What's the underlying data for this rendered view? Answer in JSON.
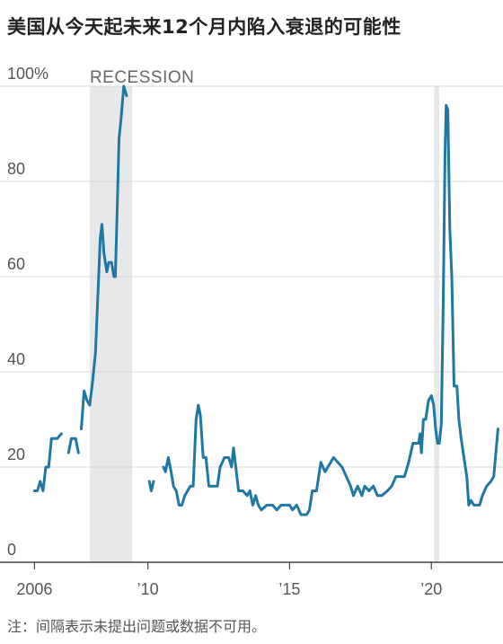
{
  "header": {
    "title": "美国从今天起未来12个月内陷入衰退的可能性"
  },
  "footer": {
    "note": "注：间隔表示未提出问题或数据不可用。"
  },
  "colors": {
    "line": "#1f77a4",
    "recession": "#e6e8ea",
    "grid": "#d9d9d9",
    "axis": "#444444"
  },
  "chart_data": {
    "type": "line",
    "title": "美国从今天起未来12个月内陷入衰退的可能性",
    "xlabel": "",
    "ylabel": "",
    "xlim": [
      2005.1,
      2022.4
    ],
    "ylim": [
      0,
      100
    ],
    "x_ticks": [
      {
        "value": 2006,
        "label": "2006"
      },
      {
        "value": 2010,
        "label": "’10"
      },
      {
        "value": 2015,
        "label": "’15"
      },
      {
        "value": 2020,
        "label": "’20"
      }
    ],
    "y_ticks": [
      {
        "value": 0,
        "label": "0"
      },
      {
        "value": 20,
        "label": "20"
      },
      {
        "value": 40,
        "label": "40"
      },
      {
        "value": 60,
        "label": "60"
      },
      {
        "value": 80,
        "label": "80"
      },
      {
        "value": 100,
        "label": "100%"
      }
    ],
    "grid": true,
    "recessions": [
      {
        "start": 2007.95,
        "end": 2009.45,
        "label": "RECESSION"
      },
      {
        "start": 2020.1,
        "end": 2020.28,
        "label": ""
      }
    ],
    "series": [
      {
        "name": "",
        "segments": [
          [
            [
              2006.0,
              15
            ],
            [
              2006.1,
              15
            ],
            [
              2006.2,
              17
            ],
            [
              2006.3,
              15
            ],
            [
              2006.4,
              20
            ],
            [
              2006.5,
              20
            ],
            [
              2006.6,
              26
            ],
            [
              2006.7,
              26
            ],
            [
              2006.8,
              26
            ],
            [
              2006.95,
              27
            ]
          ],
          [
            [
              2007.2,
              23
            ],
            [
              2007.3,
              26
            ],
            [
              2007.45,
              26
            ],
            [
              2007.55,
              23
            ]
          ],
          [
            [
              2007.65,
              28
            ],
            [
              2007.75,
              36
            ],
            [
              2007.85,
              34
            ],
            [
              2007.95,
              33
            ],
            [
              2008.05,
              38
            ],
            [
              2008.15,
              44
            ],
            [
              2008.25,
              58
            ],
            [
              2008.32,
              68
            ],
            [
              2008.38,
              71
            ],
            [
              2008.45,
              65
            ],
            [
              2008.55,
              61
            ],
            [
              2008.62,
              63
            ],
            [
              2008.72,
              63
            ],
            [
              2008.8,
              60
            ],
            [
              2008.85,
              60
            ],
            [
              2008.92,
              75
            ],
            [
              2008.98,
              89
            ],
            [
              2009.05,
              93
            ],
            [
              2009.15,
              100
            ],
            [
              2009.25,
              98
            ]
          ],
          [
            [
              2010.05,
              17
            ],
            [
              2010.12,
              15
            ],
            [
              2010.2,
              17
            ]
          ],
          [
            [
              2010.55,
              20
            ],
            [
              2010.62,
              19
            ],
            [
              2010.72,
              22
            ],
            [
              2010.82,
              19
            ],
            [
              2010.9,
              16
            ],
            [
              2011.0,
              15
            ],
            [
              2011.1,
              12
            ],
            [
              2011.2,
              12
            ],
            [
              2011.3,
              14
            ],
            [
              2011.4,
              15
            ],
            [
              2011.5,
              16
            ],
            [
              2011.6,
              16
            ],
            [
              2011.7,
              30
            ],
            [
              2011.78,
              33
            ],
            [
              2011.85,
              31
            ],
            [
              2011.95,
              22
            ],
            [
              2012.05,
              22
            ],
            [
              2012.15,
              16
            ],
            [
              2012.3,
              16
            ],
            [
              2012.45,
              16
            ],
            [
              2012.55,
              20
            ],
            [
              2012.7,
              22
            ],
            [
              2012.85,
              22
            ],
            [
              2012.95,
              20
            ],
            [
              2013.02,
              24
            ],
            [
              2013.1,
              20
            ],
            [
              2013.2,
              15
            ],
            [
              2013.35,
              15
            ],
            [
              2013.5,
              14
            ],
            [
              2013.6,
              15
            ],
            [
              2013.7,
              12
            ],
            [
              2013.8,
              14
            ],
            [
              2013.9,
              12
            ],
            [
              2014.0,
              11
            ],
            [
              2014.2,
              12
            ],
            [
              2014.4,
              12
            ],
            [
              2014.55,
              11
            ],
            [
              2014.7,
              12
            ],
            [
              2014.85,
              12
            ],
            [
              2015.0,
              12
            ],
            [
              2015.1,
              11
            ],
            [
              2015.25,
              12
            ],
            [
              2015.4,
              10
            ],
            [
              2015.6,
              10
            ],
            [
              2015.7,
              11
            ],
            [
              2015.8,
              15
            ],
            [
              2015.95,
              15
            ],
            [
              2016.1,
              21
            ],
            [
              2016.25,
              19
            ],
            [
              2016.45,
              21
            ],
            [
              2016.55,
              22
            ],
            [
              2016.7,
              21
            ],
            [
              2016.85,
              20
            ],
            [
              2017.0,
              18
            ],
            [
              2017.15,
              16
            ],
            [
              2017.25,
              14
            ],
            [
              2017.4,
              16
            ],
            [
              2017.55,
              14
            ],
            [
              2017.65,
              16
            ],
            [
              2017.8,
              15
            ],
            [
              2017.95,
              16
            ],
            [
              2018.1,
              14
            ],
            [
              2018.25,
              14
            ],
            [
              2018.45,
              15
            ],
            [
              2018.6,
              16
            ],
            [
              2018.75,
              18
            ],
            [
              2018.9,
              18
            ],
            [
              2019.05,
              18
            ],
            [
              2019.2,
              21
            ],
            [
              2019.35,
              25
            ],
            [
              2019.45,
              25
            ],
            [
              2019.55,
              25
            ],
            [
              2019.6,
              27
            ],
            [
              2019.65,
              23
            ],
            [
              2019.72,
              30
            ],
            [
              2019.8,
              30
            ],
            [
              2019.9,
              34
            ],
            [
              2020.0,
              35
            ],
            [
              2020.08,
              33
            ],
            [
              2020.15,
              28
            ],
            [
              2020.22,
              25
            ],
            [
              2020.28,
              25
            ],
            [
              2020.35,
              29
            ],
            [
              2020.42,
              55
            ],
            [
              2020.48,
              85
            ],
            [
              2020.52,
              96
            ],
            [
              2020.58,
              95
            ],
            [
              2020.65,
              70
            ],
            [
              2020.72,
              60
            ],
            [
              2020.8,
              37
            ],
            [
              2020.9,
              37
            ],
            [
              2020.97,
              30
            ],
            [
              2021.05,
              26
            ],
            [
              2021.15,
              22
            ],
            [
              2021.25,
              18
            ],
            [
              2021.32,
              12
            ],
            [
              2021.4,
              13
            ],
            [
              2021.5,
              12
            ],
            [
              2021.6,
              12
            ],
            [
              2021.7,
              12
            ],
            [
              2021.8,
              14
            ],
            [
              2021.95,
              16
            ],
            [
              2022.1,
              17
            ],
            [
              2022.2,
              18
            ],
            [
              2022.35,
              28
            ]
          ]
        ]
      }
    ]
  }
}
